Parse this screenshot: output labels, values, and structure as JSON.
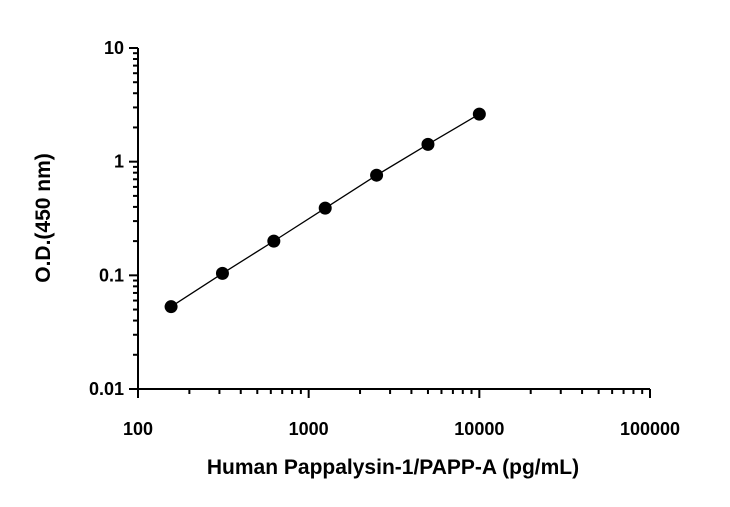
{
  "chart_data": {
    "type": "scatter",
    "title": "",
    "xlabel": "Human Pappalysin-1/PAPP-A (pg/mL)",
    "ylabel": "O.D.(450 nm)",
    "xscale": "log",
    "yscale": "log",
    "xlim": [
      100,
      100000
    ],
    "ylim": [
      0.01,
      10
    ],
    "xticks": [
      100,
      1000,
      10000,
      100000
    ],
    "xtick_labels": [
      "100",
      "1000",
      "10000",
      "100000"
    ],
    "yticks": [
      0.01,
      0.1,
      1,
      10
    ],
    "ytick_labels": [
      "0.01",
      "0.1",
      "1",
      "10"
    ],
    "grid": false,
    "series": [
      {
        "x": [
          156.25,
          312.5,
          625,
          1250,
          2500,
          5000,
          10000
        ],
        "y": [
          0.053,
          0.104,
          0.2,
          0.39,
          0.76,
          1.42,
          2.62
        ],
        "marker": "circle",
        "fit_line": true,
        "color": "#000000"
      }
    ]
  }
}
